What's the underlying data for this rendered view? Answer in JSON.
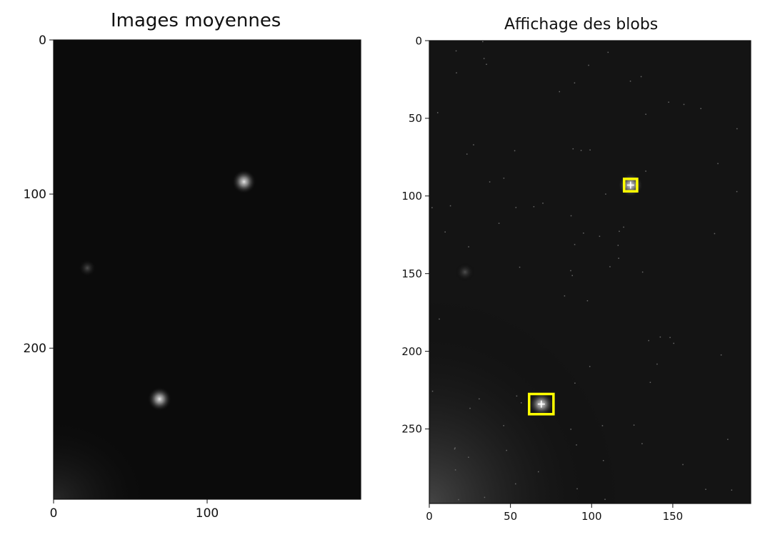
{
  "chart_data": [
    {
      "type": "image",
      "title": "Images moyennes",
      "xlabel": "",
      "ylabel": "",
      "xlim": [
        0,
        200
      ],
      "ylim": [
        298,
        0
      ],
      "xticks": [
        0,
        100
      ],
      "yticks": [
        0,
        100,
        200
      ],
      "colormap": "gray",
      "blobs_visible": [
        {
          "x": 124,
          "y": 92
        },
        {
          "x": 69,
          "y": 233
        },
        {
          "x": 22,
          "y": 148
        }
      ]
    },
    {
      "type": "image",
      "title": "Affichage des blobs",
      "xlabel": "",
      "ylabel": "",
      "xlim": [
        0,
        198
      ],
      "ylim": [
        298,
        0
      ],
      "xticks": [
        0,
        50,
        100,
        150
      ],
      "yticks": [
        0,
        50,
        100,
        150,
        200,
        250
      ],
      "colormap": "gray",
      "highlight_color": "#ffff00",
      "detected_blobs": [
        {
          "x": 124,
          "y": 93,
          "w": 8,
          "h": 8
        },
        {
          "x": 69,
          "y": 234,
          "w": 15,
          "h": 13
        }
      ],
      "faint_blobs": [
        {
          "x": 22,
          "y": 149
        }
      ]
    }
  ]
}
